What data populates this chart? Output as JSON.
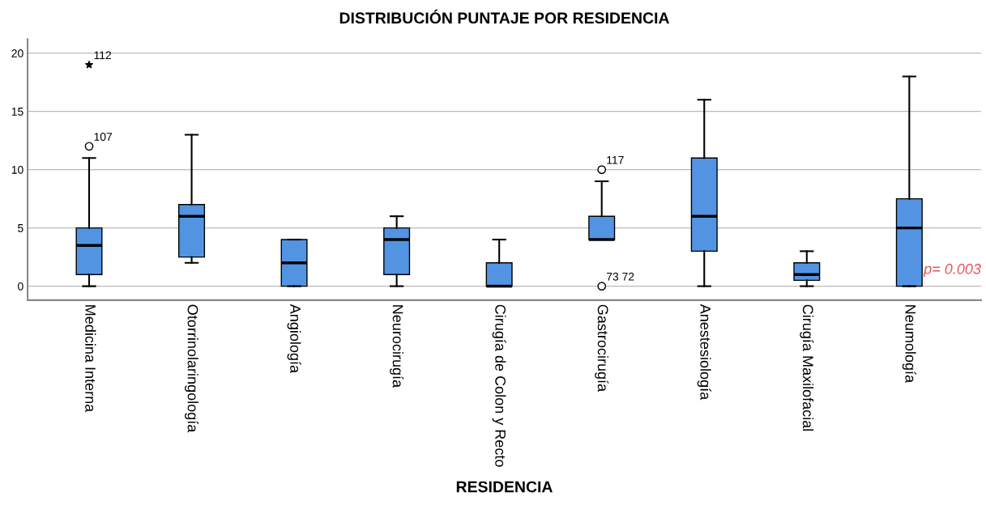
{
  "chart_data": {
    "type": "box",
    "title": "DISTRIBUCIÓN PUNTAJE POR RESIDENCIA",
    "xlabel": "RESIDENCIA",
    "categories": [
      "Medicina Interna",
      "Otorrinolaringología",
      "Angiología",
      "Neurocirugía",
      "Cirugía de Colon y Recto",
      "Gastrocirugía",
      "Anestesiología",
      "Cirugía Maxilofacial",
      "Neumología"
    ],
    "color": "#5294e2",
    "boxes": [
      {
        "low": 0,
        "q1": 1,
        "median": 3.5,
        "q3": 5,
        "high": 11
      },
      {
        "low": 2,
        "q1": 2.5,
        "median": 6,
        "q3": 7,
        "high": 13
      },
      {
        "low": 0,
        "q1": 0,
        "median": 2,
        "q3": 4,
        "high": 4
      },
      {
        "low": 0,
        "q1": 1,
        "median": 4,
        "q3": 5,
        "high": 6
      },
      {
        "low": 0,
        "q1": 0,
        "median": 0,
        "q3": 2,
        "high": 4
      },
      {
        "low": 4,
        "q1": 4,
        "median": 4,
        "q3": 6,
        "high": 9
      },
      {
        "low": 0,
        "q1": 3,
        "median": 6,
        "q3": 11,
        "high": 16
      },
      {
        "low": 0,
        "q1": 0.5,
        "median": 1,
        "q3": 2,
        "high": 3
      },
      {
        "low": 0,
        "q1": 0,
        "median": 5,
        "q3": 7.5,
        "high": 18
      }
    ],
    "series": [
      {
        "type": "scatter",
        "color": "#000000",
        "x": [
          "Medicina Interna",
          "Medicina Interna",
          "Gastrocirugía",
          "Gastrocirugía"
        ],
        "values": [
          19,
          12,
          10,
          0
        ]
      }
    ],
    "ylim": [
      -1.2,
      21.2
    ],
    "yticks": [
      0,
      5,
      10,
      15,
      20
    ],
    "grid": "y",
    "annotations": [
      {
        "text": "112",
        "x": "Medicina Interna",
        "y": 19
      },
      {
        "text": "107",
        "x": "Medicina Interna",
        "y": 12
      },
      {
        "text": "117",
        "x": "Gastrocirugía",
        "y": 10
      },
      {
        "text": "73 72",
        "x": "Gastrocirugía",
        "y": 0
      },
      "p= 0.003"
    ]
  }
}
